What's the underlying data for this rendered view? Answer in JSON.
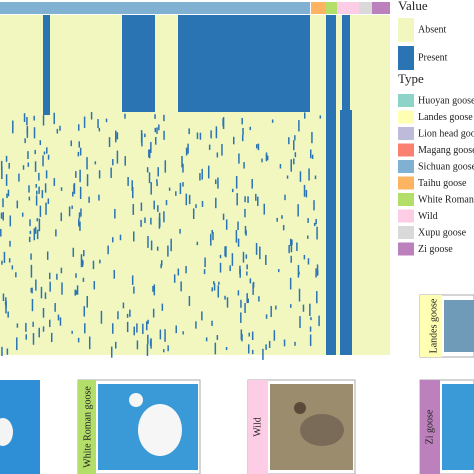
{
  "legend": {
    "value_title": "Value",
    "values": [
      {
        "label": "Absent",
        "color": "#f2f7bf"
      },
      {
        "label": "Present",
        "color": "#2b74b3"
      }
    ],
    "type_title": "Type",
    "types": [
      {
        "label": "Huoyan goose",
        "color": "#8dd3c7"
      },
      {
        "label": "Landes goose",
        "color": "#ffffb3"
      },
      {
        "label": "Lion head goose",
        "color": "#bebada"
      },
      {
        "label": "Magang goose",
        "color": "#fb8072"
      },
      {
        "label": "Sichuan goose",
        "color": "#80b1d3"
      },
      {
        "label": "Taihu goose",
        "color": "#fdb462"
      },
      {
        "label": "White Roman goose",
        "color": "#b3de69"
      },
      {
        "label": "Wild",
        "color": "#fccde5"
      },
      {
        "label": "Xupu goose",
        "color": "#d9d9d9"
      },
      {
        "label": "Zi goose",
        "color": "#bc80bd"
      }
    ]
  },
  "photos": [
    {
      "label": "Landes goose"
    },
    {
      "label": "White Roman goose"
    },
    {
      "label": "Wild"
    },
    {
      "label": "Zi goose"
    }
  ]
}
